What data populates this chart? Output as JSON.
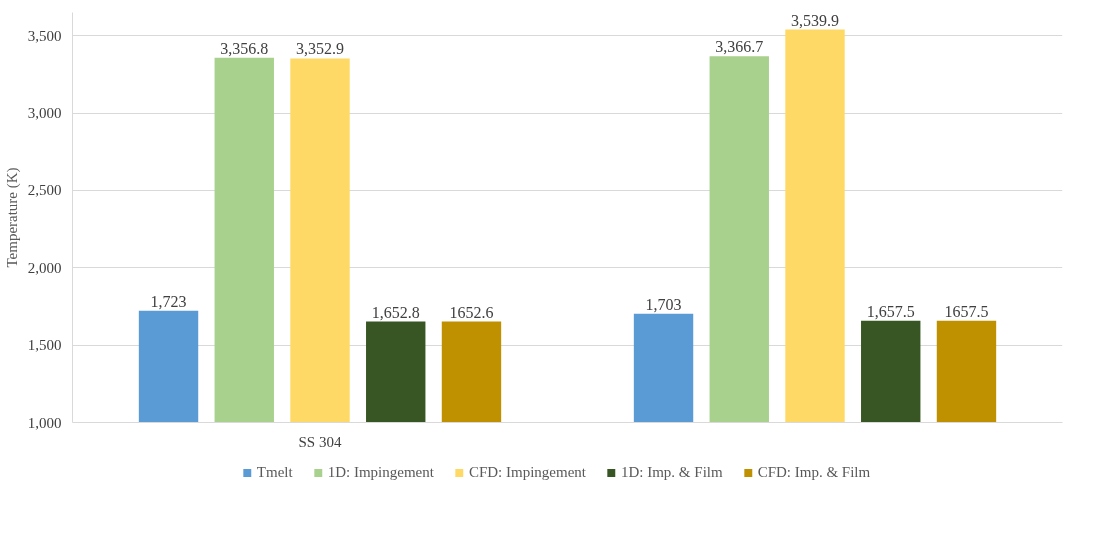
{
  "chart_data": {
    "type": "bar",
    "ylabel": "Temperature (K)",
    "categories": [
      "SS 304",
      null
    ],
    "series": [
      {
        "name": "Tmelt",
        "color": "#5b9bd5",
        "values": [
          1723,
          1703
        ],
        "value_labels": [
          "1,723",
          "1,703"
        ]
      },
      {
        "name": "1D: Impingement",
        "color": "#a9d18e",
        "values": [
          3356.8,
          3366.7
        ],
        "value_labels": [
          "3,356.8",
          "3,366.7"
        ]
      },
      {
        "name": "CFD: Impingement",
        "color": "#ffd966",
        "values": [
          3352.9,
          3539.9
        ],
        "value_labels": [
          "3,352.9",
          "3,539.9"
        ]
      },
      {
        "name": "1D: Imp. & Film",
        "color": "#375623",
        "values": [
          1652.8,
          1657.5
        ],
        "value_labels": [
          "1,652.8",
          "1,657.5"
        ]
      },
      {
        "name": "CFD: Imp. & Film",
        "color": "#bf9000",
        "values": [
          1652.6,
          1657.5
        ],
        "value_labels": [
          "1652.6",
          "1657.5"
        ]
      }
    ],
    "ylim": [
      1000,
      3650
    ],
    "yticks": [
      {
        "value": 1000,
        "label": "1,000"
      },
      {
        "value": 1500,
        "label": "1,500"
      },
      {
        "value": 2000,
        "label": "2,000"
      },
      {
        "value": 2500,
        "label": "2,500"
      },
      {
        "value": 3000,
        "label": "3,000"
      },
      {
        "value": 3500,
        "label": "3,500"
      }
    ],
    "grid": "y",
    "legend": "bottom"
  }
}
